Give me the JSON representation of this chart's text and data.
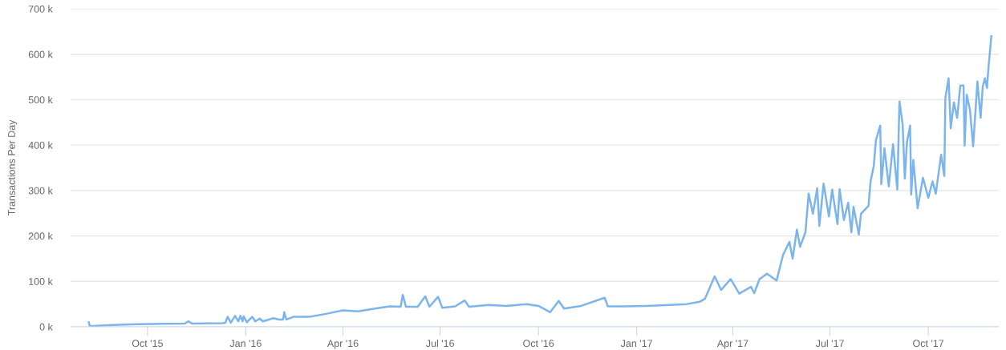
{
  "chart_data": {
    "type": "line",
    "ylabel": "Transactions Per Day",
    "grid": "y",
    "legend": false,
    "marker": "none",
    "line_style": "solid",
    "xlim": [
      "2015-07-21",
      "2017-12-06"
    ],
    "xticks": [
      {
        "value": "2015-10-01",
        "label": "Oct '15"
      },
      {
        "value": "2016-01-01",
        "label": "Jan '16"
      },
      {
        "value": "2016-04-01",
        "label": "Apr '16"
      },
      {
        "value": "2016-07-01",
        "label": "Jul '16"
      },
      {
        "value": "2016-10-01",
        "label": "Oct '16"
      },
      {
        "value": "2017-01-01",
        "label": "Jan '17"
      },
      {
        "value": "2017-04-01",
        "label": "Apr '17"
      },
      {
        "value": "2017-07-01",
        "label": "Jul '17"
      },
      {
        "value": "2017-10-01",
        "label": "Oct '17"
      }
    ],
    "ylim": [
      0,
      700000
    ],
    "yticks": [
      {
        "value": 0,
        "label": "0 k"
      },
      {
        "value": 100000,
        "label": "100 k"
      },
      {
        "value": 200000,
        "label": "200 k"
      },
      {
        "value": 300000,
        "label": "300 k"
      },
      {
        "value": 400000,
        "label": "400 k"
      },
      {
        "value": 500000,
        "label": "500 k"
      },
      {
        "value": 600000,
        "label": "600 k"
      },
      {
        "value": 700000,
        "label": "700 k"
      }
    ],
    "series": [
      {
        "color": "#7cb5ec",
        "x": [
          "2015-08-07",
          "2015-08-08",
          "2015-08-25",
          "2015-09-15",
          "2015-10-15",
          "2015-11-05",
          "2015-11-08",
          "2015-11-12",
          "2015-12-10",
          "2015-12-13",
          "2015-12-15",
          "2015-12-18",
          "2015-12-22",
          "2015-12-25",
          "2015-12-27",
          "2015-12-29",
          "2015-12-30",
          "2016-01-02",
          "2016-01-07",
          "2016-01-10",
          "2016-01-14",
          "2016-01-17",
          "2016-01-27",
          "2016-02-01",
          "2016-02-05",
          "2016-02-06",
          "2016-02-08",
          "2016-02-15",
          "2016-03-01",
          "2016-03-15",
          "2016-04-01",
          "2016-04-15",
          "2016-05-01",
          "2016-05-15",
          "2016-05-25",
          "2016-05-27",
          "2016-05-30",
          "2016-06-10",
          "2016-06-17",
          "2016-06-21",
          "2016-06-29",
          "2016-07-03",
          "2016-07-15",
          "2016-07-24",
          "2016-07-28",
          "2016-08-15",
          "2016-09-01",
          "2016-09-20",
          "2016-10-01",
          "2016-10-12",
          "2016-10-20",
          "2016-10-25",
          "2016-11-10",
          "2016-12-02",
          "2016-12-05",
          "2016-12-20",
          "2017-01-10",
          "2017-02-01",
          "2017-02-17",
          "2017-03-01",
          "2017-03-06",
          "2017-03-15",
          "2017-03-21",
          "2017-03-30",
          "2017-04-07",
          "2017-04-18",
          "2017-04-21",
          "2017-04-26",
          "2017-05-03",
          "2017-05-12",
          "2017-05-18",
          "2017-05-24",
          "2017-05-27",
          "2017-05-31",
          "2017-06-03",
          "2017-06-08",
          "2017-06-11",
          "2017-06-15",
          "2017-06-19",
          "2017-06-21",
          "2017-06-25",
          "2017-06-30",
          "2017-07-03",
          "2017-07-08",
          "2017-07-10",
          "2017-07-14",
          "2017-07-18",
          "2017-07-21",
          "2017-07-23",
          "2017-07-28",
          "2017-07-30",
          "2017-08-06",
          "2017-08-08",
          "2017-08-11",
          "2017-08-13",
          "2017-08-17",
          "2017-08-18",
          "2017-08-21",
          "2017-08-25",
          "2017-08-29",
          "2017-09-02",
          "2017-09-04",
          "2017-09-07",
          "2017-09-09",
          "2017-09-11",
          "2017-09-14",
          "2017-09-15",
          "2017-09-17",
          "2017-09-21",
          "2017-09-26",
          "2017-10-01",
          "2017-10-05",
          "2017-10-08",
          "2017-10-13",
          "2017-10-16",
          "2017-10-17",
          "2017-10-20",
          "2017-10-22",
          "2017-10-25",
          "2017-10-28",
          "2017-10-31",
          "2017-11-03",
          "2017-11-04",
          "2017-11-06",
          "2017-11-09",
          "2017-11-12",
          "2017-11-16",
          "2017-11-19",
          "2017-11-21",
          "2017-11-23",
          "2017-11-25",
          "2017-11-26",
          "2017-11-29"
        ],
        "values": [
          10000,
          1500,
          3500,
          5500,
          6500,
          7000,
          12000,
          7000,
          8000,
          9000,
          22000,
          9000,
          24000,
          12000,
          24000,
          12000,
          23000,
          10000,
          22000,
          12000,
          18000,
          12000,
          19000,
          16000,
          16000,
          32000,
          16000,
          22000,
          22000,
          28000,
          36000,
          34000,
          40000,
          45000,
          44000,
          70000,
          44000,
          44000,
          67000,
          44000,
          66000,
          42000,
          45000,
          58000,
          44000,
          48000,
          46000,
          50000,
          46000,
          32000,
          57000,
          40000,
          46000,
          64000,
          45000,
          45000,
          46000,
          48000,
          50000,
          55000,
          62000,
          111000,
          81000,
          105000,
          73000,
          88000,
          74000,
          105000,
          117000,
          102000,
          158000,
          187000,
          150000,
          214000,
          176000,
          208000,
          293000,
          249000,
          305000,
          222000,
          315000,
          243000,
          302000,
          226000,
          303000,
          235000,
          273000,
          208000,
          264000,
          203000,
          249000,
          266000,
          320000,
          355000,
          411000,
          443000,
          314000,
          393000,
          309000,
          402000,
          302000,
          496000,
          446000,
          326000,
          406000,
          443000,
          291000,
          367000,
          261000,
          328000,
          284000,
          320000,
          293000,
          379000,
          332000,
          504000,
          547000,
          437000,
          494000,
          460000,
          531000,
          531000,
          399000,
          511000,
          478000,
          397000,
          540000,
          460000,
          529000,
          547000,
          526000,
          561000,
          640000
        ]
      }
    ]
  }
}
